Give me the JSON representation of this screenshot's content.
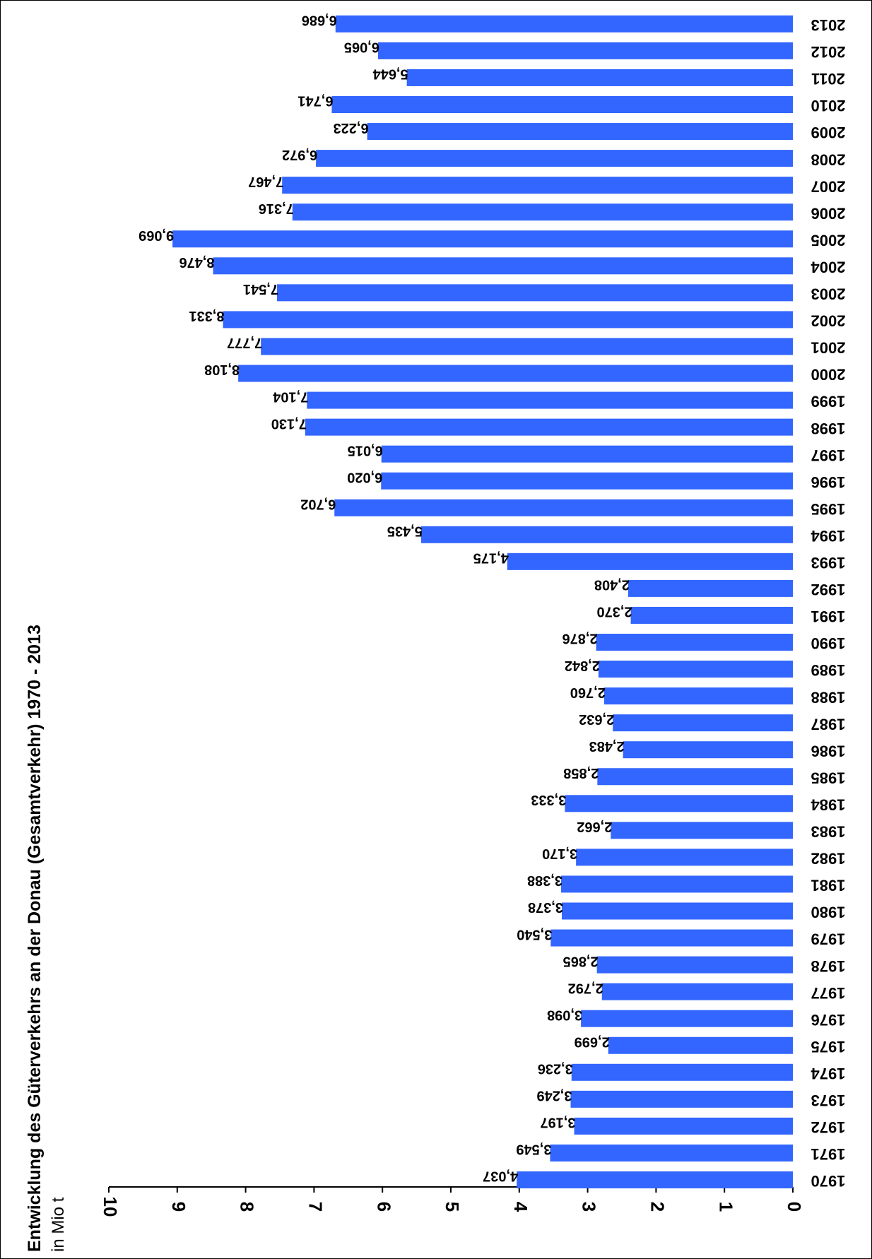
{
  "chart_data": {
    "type": "bar",
    "orientation": "horizontal",
    "rotation": "upside-down",
    "title": "Entwicklung des Güterverkehrs an der Donau (Gesamtverkehr) 1970 - 2013",
    "unit": "in Mio t",
    "bar_color": "#3366ff",
    "xlim": [
      0,
      10
    ],
    "x_ticks": [
      0,
      1,
      2,
      3,
      4,
      5,
      6,
      7,
      8,
      9,
      10
    ],
    "tick_labels": [
      "0",
      "1",
      "2",
      "3",
      "4",
      "5",
      "6",
      "7",
      "8",
      "9",
      "10"
    ],
    "grid": false,
    "categories": [
      "1970",
      "1971",
      "1972",
      "1973",
      "1974",
      "1975",
      "1976",
      "1977",
      "1978",
      "1979",
      "1980",
      "1981",
      "1982",
      "1983",
      "1984",
      "1985",
      "1986",
      "1987",
      "1988",
      "1989",
      "1990",
      "1991",
      "1992",
      "1993",
      "1994",
      "1995",
      "1996",
      "1997",
      "1998",
      "1999",
      "2000",
      "2001",
      "2002",
      "2003",
      "2004",
      "2005",
      "2006",
      "2007",
      "2008",
      "2009",
      "2010",
      "2011",
      "2012",
      "2013"
    ],
    "values": [
      4.037,
      3.549,
      3.197,
      3.249,
      3.236,
      2.699,
      3.098,
      2.792,
      2.865,
      3.54,
      3.378,
      3.388,
      3.17,
      2.662,
      3.333,
      2.858,
      2.483,
      2.632,
      2.76,
      2.842,
      2.876,
      2.37,
      2.408,
      4.175,
      5.435,
      6.702,
      6.02,
      6.015,
      7.13,
      7.104,
      8.108,
      7.777,
      8.331,
      7.541,
      8.476,
      9.069,
      7.316,
      7.467,
      6.972,
      6.223,
      6.741,
      5.644,
      6.065,
      6.686
    ],
    "value_labels": [
      "4,037",
      "3,549",
      "3,197",
      "3,249",
      "3,236",
      "2,699",
      "3,098",
      "2,792",
      "2,865",
      "3,540",
      "3,378",
      "3,388",
      "3,170",
      "2,662",
      "3,333",
      "2,858",
      "2,483",
      "2,632",
      "2,760",
      "2,842",
      "2,876",
      "2,370",
      "2,408",
      "4,175",
      "5,435",
      "6,702",
      "6,020",
      "6,015",
      "7,130",
      "7,104",
      "8,108",
      "7,777",
      "8,331",
      "7,541",
      "8,476",
      "9,069",
      "7,316",
      "7,467",
      "6,972",
      "6,223",
      "6,741",
      "5,644",
      "6,065",
      "6,686"
    ]
  }
}
